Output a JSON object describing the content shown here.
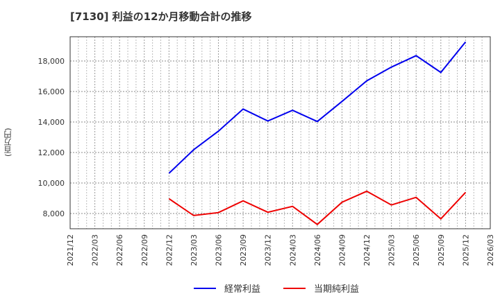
{
  "header": {
    "title": "[7130]  利益の12か月移動合計の推移",
    "y_unit_label": "(百万円)"
  },
  "legend": [
    {
      "label": "経常利益",
      "color": "#0000ee"
    },
    {
      "label": "当期純利益",
      "color": "#ee0000"
    }
  ],
  "chart_data": {
    "type": "line",
    "title": "[7130]  利益の12か月移動合計の推移",
    "xlabel": "",
    "ylabel": "(百万円)",
    "ylim": [
      7000,
      19600
    ],
    "yticks": [
      8000,
      10000,
      12000,
      14000,
      16000,
      18000
    ],
    "ytick_labels": [
      "8,000",
      "10,000",
      "12,000",
      "14,000",
      "16,000",
      "18,000"
    ],
    "xtick_labels": [
      "2021/12",
      "2022/03",
      "2022/06",
      "2022/09",
      "2022/12",
      "2023/03",
      "2023/06",
      "2023/09",
      "2023/12",
      "2024/03",
      "2024/06",
      "2024/09",
      "2024/12",
      "2025/03",
      "2025/06",
      "2025/09",
      "2025/12",
      "2026/03"
    ],
    "grid": true,
    "legend_position": "bottom",
    "x": [
      "2022/12",
      "2023/03",
      "2023/06",
      "2023/09",
      "2023/12",
      "2024/03",
      "2024/06",
      "2024/09",
      "2024/12",
      "2025/03",
      "2025/06",
      "2025/09",
      "2025/12"
    ],
    "series": [
      {
        "name": "経常利益",
        "color": "#0000ee",
        "values": [
          10640,
          12180,
          13400,
          14850,
          14070,
          14770,
          14030,
          15350,
          16700,
          17600,
          18350,
          17250,
          19250
        ]
      },
      {
        "name": "当期純利益",
        "color": "#ee0000",
        "values": [
          8970,
          7870,
          8060,
          8830,
          8080,
          8470,
          7280,
          8740,
          9460,
          8560,
          9060,
          7650,
          9380
        ]
      }
    ]
  }
}
